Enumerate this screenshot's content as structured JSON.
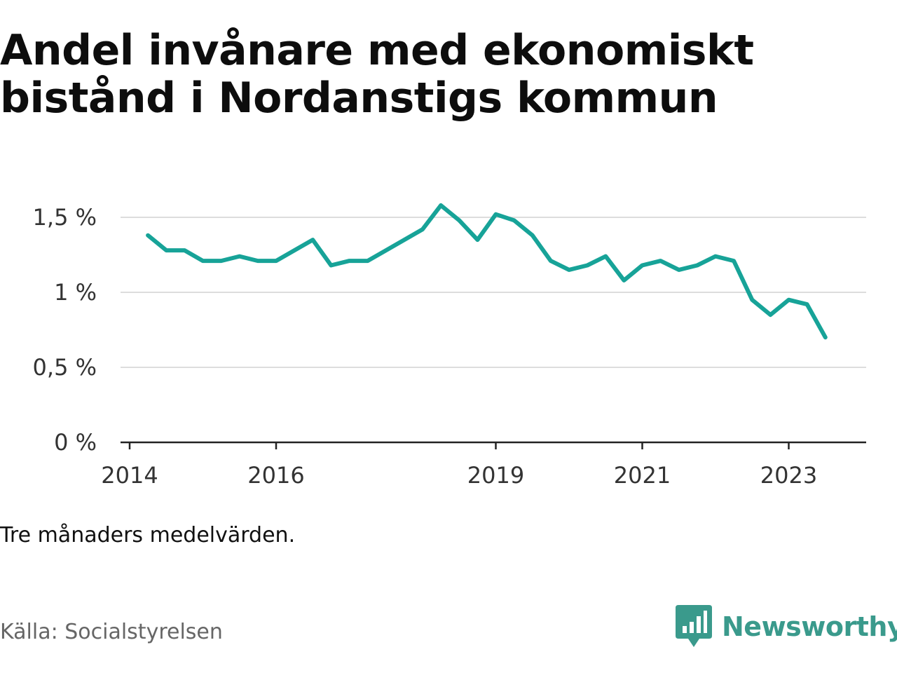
{
  "title": "Andel invånare med ekonomiskt bistånd i Nordanstigs kommun",
  "note": "Tre månaders medelvärden.",
  "source": "Källa: Socialstyrelsen",
  "brand": {
    "name": "Newsworthy",
    "icon": "bar-chart-speech-bubble-icon",
    "color": "#3a9a8c"
  },
  "colors": {
    "line": "#17a398",
    "grid": "#dddddd",
    "axis": "#222222"
  },
  "chart_data": {
    "type": "line",
    "title": "Andel invånare med ekonomiskt bistånd i Nordanstigs kommun",
    "xlabel": "",
    "ylabel": "",
    "x_ticks": [
      "2014",
      "2016",
      "2019",
      "2021",
      "2023"
    ],
    "y_ticks": [
      "0 %",
      "0,5 %",
      "1 %",
      "1,5 %"
    ],
    "ylim": [
      0,
      1.5
    ],
    "grid": true,
    "series": [
      {
        "values": [
          [
            "2014-04",
            1.38
          ],
          [
            "2014-07",
            1.28
          ],
          [
            "2014-10",
            1.28
          ],
          [
            "2015-01",
            1.21
          ],
          [
            "2015-04",
            1.21
          ],
          [
            "2015-07",
            1.24
          ],
          [
            "2015-10",
            1.21
          ],
          [
            "2016-01",
            1.21
          ],
          [
            "2016-04",
            1.28
          ],
          [
            "2016-07",
            1.35
          ],
          [
            "2016-10",
            1.18
          ],
          [
            "2017-01",
            1.21
          ],
          [
            "2017-04",
            1.21
          ],
          [
            "2017-07",
            1.28
          ],
          [
            "2017-10",
            1.35
          ],
          [
            "2018-01",
            1.42
          ],
          [
            "2018-04",
            1.58
          ],
          [
            "2018-07",
            1.48
          ],
          [
            "2018-10",
            1.35
          ],
          [
            "2019-01",
            1.52
          ],
          [
            "2019-04",
            1.48
          ],
          [
            "2019-07",
            1.38
          ],
          [
            "2019-10",
            1.21
          ],
          [
            "2020-01",
            1.15
          ],
          [
            "2020-04",
            1.18
          ],
          [
            "2020-07",
            1.24
          ],
          [
            "2020-10",
            1.08
          ],
          [
            "2021-01",
            1.18
          ],
          [
            "2021-04",
            1.21
          ],
          [
            "2021-07",
            1.15
          ],
          [
            "2021-10",
            1.18
          ],
          [
            "2022-01",
            1.24
          ],
          [
            "2022-04",
            1.21
          ],
          [
            "2022-07",
            0.95
          ],
          [
            "2022-10",
            0.85
          ],
          [
            "2023-01",
            0.95
          ],
          [
            "2023-04",
            0.92
          ],
          [
            "2023-07",
            0.7
          ]
        ]
      }
    ]
  }
}
